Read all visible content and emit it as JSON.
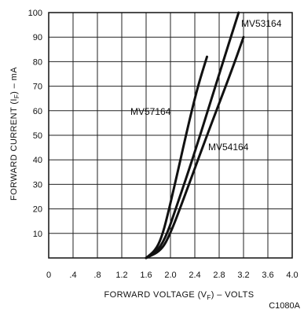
{
  "chart_data": {
    "type": "line",
    "xlabel_prefix": "FORWARD VOLTAGE (V",
    "xlabel_sub": "F",
    "xlabel_suffix": ") – VOLTS",
    "ylabel_prefix": "FORWARD CURRENT (I",
    "ylabel_sub": "F",
    "ylabel_suffix": ") – mA",
    "xlim": [
      0,
      4.0
    ],
    "ylim": [
      0,
      100
    ],
    "x_tick_labels": [
      "0",
      ".4",
      ".8",
      "1.2",
      "1.6",
      "2.0",
      "2.4",
      "2.8",
      "3.2",
      "3.6",
      "4.0"
    ],
    "x_tick_values": [
      0,
      0.4,
      0.8,
      1.2,
      1.6,
      2.0,
      2.4,
      2.8,
      3.2,
      3.6,
      4.0
    ],
    "y_tick_labels": [
      "10",
      "20",
      "30",
      "40",
      "50",
      "60",
      "70",
      "80",
      "90",
      "100"
    ],
    "y_tick_values": [
      10,
      20,
      30,
      40,
      50,
      60,
      70,
      80,
      90,
      100
    ],
    "grid": true,
    "series": [
      {
        "name": "MV57164",
        "x": [
          1.6,
          1.75,
          1.85,
          1.95,
          2.1,
          2.3,
          2.45,
          2.6
        ],
        "y": [
          0,
          3,
          8,
          17,
          33,
          55,
          70,
          82
        ]
      },
      {
        "name": "MV53164",
        "x": [
          1.6,
          1.8,
          1.95,
          2.1,
          2.4,
          2.8,
          3.12
        ],
        "y": [
          0,
          3,
          10,
          21,
          43,
          75,
          100
        ]
      },
      {
        "name": "MV54164",
        "x": [
          1.6,
          1.85,
          2.0,
          2.2,
          2.6,
          3.0,
          3.2
        ],
        "y": [
          0,
          3,
          10,
          23,
          50,
          76,
          90
        ]
      }
    ],
    "code": "C1080A"
  }
}
